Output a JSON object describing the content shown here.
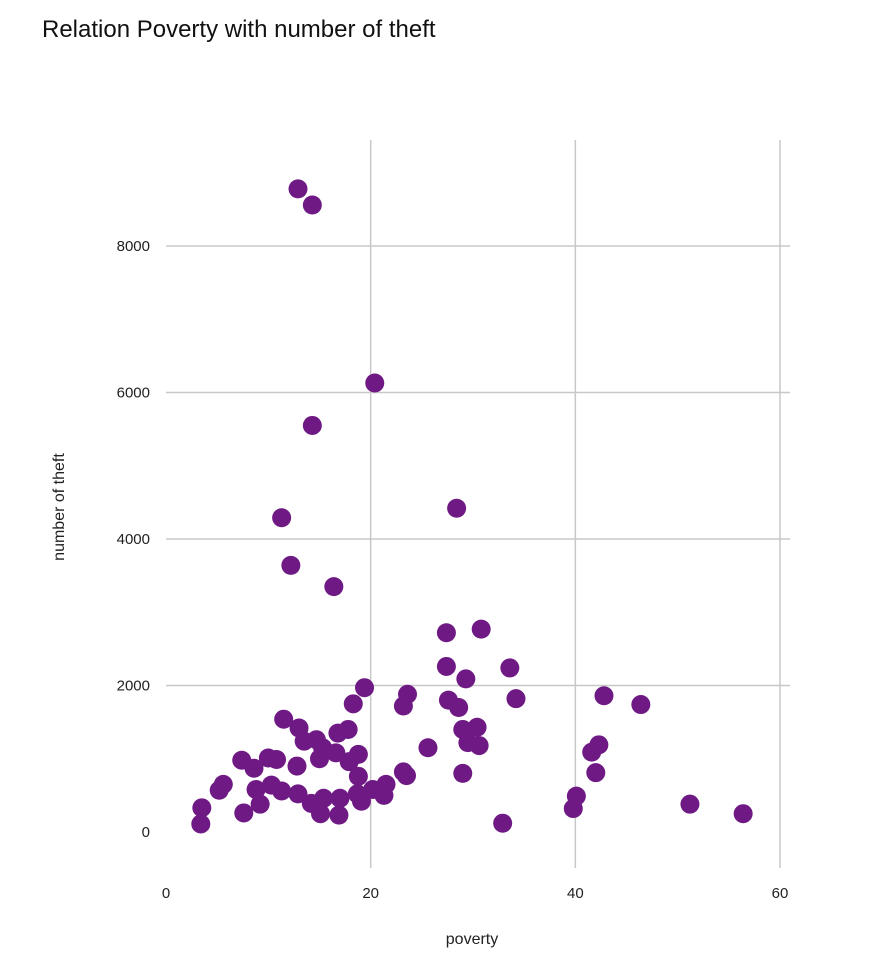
{
  "chart_data": {
    "type": "scatter",
    "title": "Relation Poverty with number of theft",
    "xlabel": "poverty",
    "ylabel": "number of theft",
    "xlim": [
      0,
      60
    ],
    "ylim": [
      -500,
      9500
    ],
    "xticks": [
      0,
      20,
      40,
      60
    ],
    "yticks": [
      0,
      2000,
      4000,
      6000,
      8000
    ],
    "grid": true,
    "point_color": "#6f1a84",
    "points": [
      {
        "x": 12.9,
        "y": 8780
      },
      {
        "x": 14.3,
        "y": 8560
      },
      {
        "x": 20.4,
        "y": 6130
      },
      {
        "x": 14.3,
        "y": 5550
      },
      {
        "x": 11.3,
        "y": 4290
      },
      {
        "x": 28.4,
        "y": 4420
      },
      {
        "x": 12.2,
        "y": 3640
      },
      {
        "x": 16.4,
        "y": 3350
      },
      {
        "x": 27.4,
        "y": 2720
      },
      {
        "x": 30.8,
        "y": 2770
      },
      {
        "x": 27.4,
        "y": 2260
      },
      {
        "x": 33.6,
        "y": 2240
      },
      {
        "x": 29.3,
        "y": 2090
      },
      {
        "x": 19.4,
        "y": 1970
      },
      {
        "x": 18.3,
        "y": 1750
      },
      {
        "x": 23.6,
        "y": 1880
      },
      {
        "x": 23.2,
        "y": 1720
      },
      {
        "x": 27.6,
        "y": 1800
      },
      {
        "x": 28.6,
        "y": 1700
      },
      {
        "x": 34.2,
        "y": 1820
      },
      {
        "x": 42.8,
        "y": 1860
      },
      {
        "x": 46.4,
        "y": 1740
      },
      {
        "x": 11.5,
        "y": 1540
      },
      {
        "x": 13.0,
        "y": 1420
      },
      {
        "x": 13.5,
        "y": 1240
      },
      {
        "x": 14.7,
        "y": 1260
      },
      {
        "x": 15.3,
        "y": 1150
      },
      {
        "x": 16.8,
        "y": 1350
      },
      {
        "x": 17.8,
        "y": 1400
      },
      {
        "x": 15.0,
        "y": 1000
      },
      {
        "x": 16.6,
        "y": 1080
      },
      {
        "x": 18.8,
        "y": 1060
      },
      {
        "x": 10.0,
        "y": 1010
      },
      {
        "x": 10.8,
        "y": 990
      },
      {
        "x": 7.4,
        "y": 980
      },
      {
        "x": 8.6,
        "y": 870
      },
      {
        "x": 12.8,
        "y": 900
      },
      {
        "x": 17.9,
        "y": 960
      },
      {
        "x": 25.6,
        "y": 1150
      },
      {
        "x": 29.0,
        "y": 1400
      },
      {
        "x": 30.4,
        "y": 1430
      },
      {
        "x": 29.5,
        "y": 1220
      },
      {
        "x": 30.6,
        "y": 1180
      },
      {
        "x": 41.6,
        "y": 1090
      },
      {
        "x": 42.3,
        "y": 1190
      },
      {
        "x": 42.0,
        "y": 810
      },
      {
        "x": 29.0,
        "y": 800
      },
      {
        "x": 23.2,
        "y": 820
      },
      {
        "x": 23.5,
        "y": 770
      },
      {
        "x": 21.5,
        "y": 650
      },
      {
        "x": 18.8,
        "y": 760
      },
      {
        "x": 20.2,
        "y": 580
      },
      {
        "x": 21.3,
        "y": 500
      },
      {
        "x": 18.7,
        "y": 520
      },
      {
        "x": 19.1,
        "y": 420
      },
      {
        "x": 17.0,
        "y": 460
      },
      {
        "x": 15.4,
        "y": 460
      },
      {
        "x": 14.2,
        "y": 390
      },
      {
        "x": 12.9,
        "y": 520
      },
      {
        "x": 11.3,
        "y": 560
      },
      {
        "x": 10.3,
        "y": 640
      },
      {
        "x": 8.8,
        "y": 580
      },
      {
        "x": 9.2,
        "y": 380
      },
      {
        "x": 7.6,
        "y": 260
      },
      {
        "x": 15.1,
        "y": 250
      },
      {
        "x": 16.9,
        "y": 230
      },
      {
        "x": 5.6,
        "y": 650
      },
      {
        "x": 5.2,
        "y": 570
      },
      {
        "x": 3.5,
        "y": 330
      },
      {
        "x": 3.4,
        "y": 110
      },
      {
        "x": 32.9,
        "y": 120
      },
      {
        "x": 40.1,
        "y": 490
      },
      {
        "x": 39.8,
        "y": 320
      },
      {
        "x": 51.2,
        "y": 380
      },
      {
        "x": 56.4,
        "y": 250
      }
    ]
  }
}
